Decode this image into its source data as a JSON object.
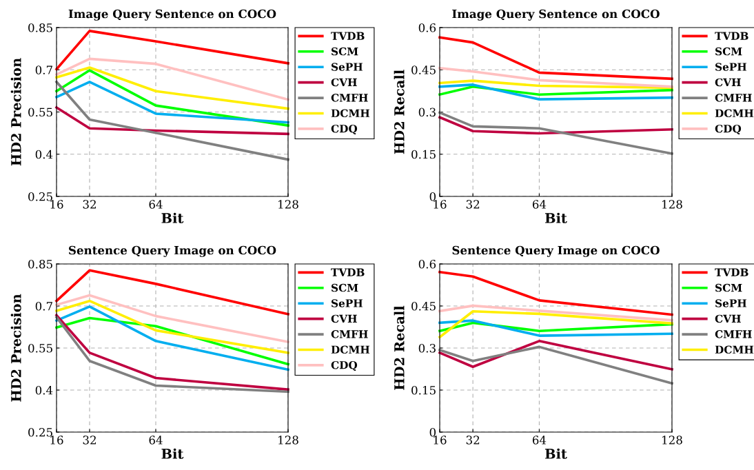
{
  "chart_data": [
    {
      "type": "line",
      "title": "Image Query Sentence on COCO",
      "xlabel": "Bit",
      "ylabel": "HD2 Precision",
      "x": [
        16,
        32,
        64,
        128
      ],
      "xlim": [
        16,
        128
      ],
      "xticks": [
        16,
        32,
        64,
        128
      ],
      "ylim": [
        0.25,
        0.85
      ],
      "yticks": [
        0.25,
        0.4,
        0.55,
        0.7,
        0.85
      ],
      "grid": true,
      "legend": "right",
      "marker": "none",
      "line_style": "solid",
      "series": [
        {
          "name": "TVDB",
          "color": "#ff0000",
          "values": [
            0.702,
            0.838,
            0.801,
            0.723
          ]
        },
        {
          "name": "SCM",
          "color": "#00ff00",
          "values": [
            0.624,
            0.698,
            0.573,
            0.502
          ]
        },
        {
          "name": "SePH",
          "color": "#00aeef",
          "values": [
            0.603,
            0.657,
            0.544,
            0.513
          ]
        },
        {
          "name": "CVH",
          "color": "#bf0040",
          "values": [
            0.566,
            0.492,
            0.484,
            0.472
          ]
        },
        {
          "name": "CMFH",
          "color": "#808080",
          "values": [
            0.657,
            0.523,
            0.476,
            0.381
          ]
        },
        {
          "name": "DCMH",
          "color": "#ffee00",
          "values": [
            0.673,
            0.708,
            0.624,
            0.562
          ]
        },
        {
          "name": "CDQ",
          "color": "#ffc0c0",
          "values": [
            0.683,
            0.739,
            0.721,
            0.594
          ]
        }
      ]
    },
    {
      "type": "line",
      "title": "Image Query Sentence on COCO",
      "xlabel": "Bit",
      "ylabel": "HD2 Recall",
      "x": [
        16,
        32,
        64,
        128
      ],
      "xlim": [
        16,
        128
      ],
      "xticks": [
        16,
        32,
        64,
        128
      ],
      "ylim": [
        0,
        0.6
      ],
      "yticks": [
        0,
        0.15,
        0.3,
        0.45,
        0.6
      ],
      "grid": true,
      "legend": "right",
      "marker": "none",
      "line_style": "solid",
      "series": [
        {
          "name": "TVDB",
          "color": "#ff0000",
          "values": [
            0.565,
            0.547,
            0.44,
            0.418
          ]
        },
        {
          "name": "SCM",
          "color": "#00ff00",
          "values": [
            0.362,
            0.39,
            0.362,
            0.378
          ]
        },
        {
          "name": "SePH",
          "color": "#00aeef",
          "values": [
            0.39,
            0.397,
            0.345,
            0.351
          ]
        },
        {
          "name": "CVH",
          "color": "#bf0040",
          "values": [
            0.281,
            0.232,
            0.224,
            0.238
          ]
        },
        {
          "name": "CMFH",
          "color": "#808080",
          "values": [
            0.298,
            0.249,
            0.242,
            0.152
          ]
        },
        {
          "name": "DCMH",
          "color": "#ffee00",
          "values": [
            0.403,
            0.411,
            0.393,
            0.386
          ]
        },
        {
          "name": "CDQ",
          "color": "#ffc0c0",
          "values": [
            0.456,
            0.444,
            0.413,
            0.39
          ]
        }
      ]
    },
    {
      "type": "line",
      "title": "Sentence Query Image on COCO",
      "xlabel": "Bit",
      "ylabel": "HD2 Precision",
      "x": [
        16,
        32,
        64,
        128
      ],
      "xlim": [
        16,
        128
      ],
      "xticks": [
        16,
        32,
        64,
        128
      ],
      "ylim": [
        0.25,
        0.85
      ],
      "yticks": [
        0.25,
        0.4,
        0.55,
        0.7,
        0.85
      ],
      "grid": true,
      "legend": "right",
      "marker": "none",
      "line_style": "solid",
      "series": [
        {
          "name": "TVDB",
          "color": "#ff0000",
          "values": [
            0.718,
            0.827,
            0.779,
            0.671
          ]
        },
        {
          "name": "SCM",
          "color": "#00ff00",
          "values": [
            0.623,
            0.657,
            0.628,
            0.492
          ]
        },
        {
          "name": "SePH",
          "color": "#00aeef",
          "values": [
            0.648,
            0.698,
            0.575,
            0.473
          ]
        },
        {
          "name": "CVH",
          "color": "#bf0040",
          "values": [
            0.667,
            0.533,
            0.443,
            0.402
          ]
        },
        {
          "name": "CMFH",
          "color": "#808080",
          "values": [
            0.66,
            0.504,
            0.416,
            0.394
          ]
        },
        {
          "name": "DCMH",
          "color": "#ffee00",
          "values": [
            0.683,
            0.718,
            0.613,
            0.533
          ]
        },
        {
          "name": "CDQ",
          "color": "#ffc0c0",
          "values": [
            0.704,
            0.738,
            0.664,
            0.572
          ]
        }
      ]
    },
    {
      "type": "line",
      "title": "Sentence Query Image on COCO",
      "xlabel": "Bit",
      "ylabel": "HD2 Recall",
      "x": [
        16,
        32,
        64,
        128
      ],
      "xlim": [
        16,
        128
      ],
      "xticks": [
        16,
        32,
        64,
        128
      ],
      "ylim": [
        0,
        0.6
      ],
      "yticks": [
        0,
        0.15,
        0.3,
        0.45,
        0.6
      ],
      "grid": true,
      "legend": "right",
      "marker": "none",
      "line_style": "solid",
      "series": [
        {
          "name": "TVDB",
          "color": "#ff0000",
          "values": [
            0.571,
            0.555,
            0.47,
            0.419
          ]
        },
        {
          "name": "SCM",
          "color": "#00ff00",
          "values": [
            0.361,
            0.39,
            0.361,
            0.385
          ]
        },
        {
          "name": "SePH",
          "color": "#00aeef",
          "values": [
            0.39,
            0.398,
            0.344,
            0.351
          ]
        },
        {
          "name": "CVH",
          "color": "#bf0040",
          "values": [
            0.283,
            0.233,
            0.325,
            0.224
          ]
        },
        {
          "name": "CMFH",
          "color": "#808080",
          "values": [
            0.293,
            0.254,
            0.304,
            0.174
          ]
        },
        {
          "name": "DCMH",
          "color": "#ffee00",
          "values": [
            0.339,
            0.431,
            0.422,
            0.388
          ]
        },
        {
          "color": "#ffc0c0",
          "values": [
            0.432,
            0.451,
            0.433,
            0.399
          ]
        }
      ]
    }
  ]
}
